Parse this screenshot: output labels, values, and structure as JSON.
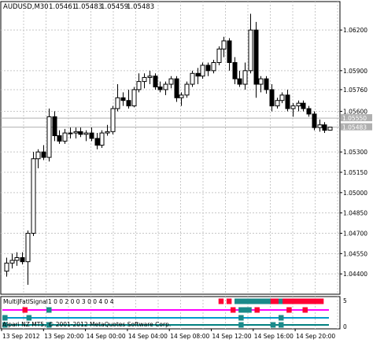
{
  "chart_data": [
    {
      "type": "candlestick",
      "symbol_timeframe": "AUDUSD,M30",
      "ohlc_header": [
        "1.05461",
        "1.05483",
        "1.05459",
        "1.05483"
      ],
      "ylim": [
        1.0425,
        1.0641
      ],
      "y_ticks": [
        "1.06200",
        "1.05900",
        "1.05760",
        "1.05600",
        "1.05300",
        "1.05150",
        "1.05000",
        "1.04850",
        "1.04700",
        "1.04550",
        "1.04400"
      ],
      "y_tick_values": [
        1.062,
        1.059,
        1.0576,
        1.056,
        1.053,
        1.0515,
        1.05,
        1.0485,
        1.047,
        1.0455,
        1.044
      ],
      "price_markers": [
        "1.05550",
        "1.05483"
      ],
      "price_marker_values": [
        1.0555,
        1.05483
      ],
      "grid": true,
      "candles": [
        {
          "o": 1.0442,
          "h": 1.0452,
          "l": 1.0438,
          "c": 1.0448
        },
        {
          "o": 1.0448,
          "h": 1.0455,
          "l": 1.0444,
          "c": 1.045
        },
        {
          "o": 1.045,
          "h": 1.0456,
          "l": 1.0446,
          "c": 1.0452
        },
        {
          "o": 1.0452,
          "h": 1.0456,
          "l": 1.0447,
          "c": 1.0449
        },
        {
          "o": 1.0449,
          "h": 1.0472,
          "l": 1.0432,
          "c": 1.047
        },
        {
          "o": 1.047,
          "h": 1.053,
          "l": 1.0468,
          "c": 1.0525
        },
        {
          "o": 1.0525,
          "h": 1.0532,
          "l": 1.0518,
          "c": 1.053
        },
        {
          "o": 1.053,
          "h": 1.0535,
          "l": 1.0524,
          "c": 1.0526
        },
        {
          "o": 1.0526,
          "h": 1.0562,
          "l": 1.0523,
          "c": 1.0556
        },
        {
          "o": 1.0556,
          "h": 1.056,
          "l": 1.0538,
          "c": 1.0542
        },
        {
          "o": 1.0542,
          "h": 1.0546,
          "l": 1.0536,
          "c": 1.0538
        },
        {
          "o": 1.0538,
          "h": 1.0547,
          "l": 1.0536,
          "c": 1.0544
        },
        {
          "o": 1.0544,
          "h": 1.0548,
          "l": 1.054,
          "c": 1.0544
        },
        {
          "o": 1.0544,
          "h": 1.0548,
          "l": 1.054,
          "c": 1.0545
        },
        {
          "o": 1.0545,
          "h": 1.0548,
          "l": 1.0541,
          "c": 1.0543
        },
        {
          "o": 1.0543,
          "h": 1.0546,
          "l": 1.0538,
          "c": 1.0544
        },
        {
          "o": 1.0544,
          "h": 1.0548,
          "l": 1.0538,
          "c": 1.054
        },
        {
          "o": 1.054,
          "h": 1.0544,
          "l": 1.0532,
          "c": 1.0535
        },
        {
          "o": 1.0535,
          "h": 1.0546,
          "l": 1.0533,
          "c": 1.0544
        },
        {
          "o": 1.0544,
          "h": 1.055,
          "l": 1.0542,
          "c": 1.0545
        },
        {
          "o": 1.0545,
          "h": 1.0564,
          "l": 1.0543,
          "c": 1.0562
        },
        {
          "o": 1.0562,
          "h": 1.058,
          "l": 1.056,
          "c": 1.057
        },
        {
          "o": 1.057,
          "h": 1.0574,
          "l": 1.0564,
          "c": 1.0568
        },
        {
          "o": 1.0568,
          "h": 1.0576,
          "l": 1.0562,
          "c": 1.0564
        },
        {
          "o": 1.0564,
          "h": 1.0578,
          "l": 1.0563,
          "c": 1.0576
        },
        {
          "o": 1.0576,
          "h": 1.0588,
          "l": 1.0574,
          "c": 1.0582
        },
        {
          "o": 1.0582,
          "h": 1.0588,
          "l": 1.0577,
          "c": 1.0585
        },
        {
          "o": 1.0585,
          "h": 1.059,
          "l": 1.058,
          "c": 1.0586
        },
        {
          "o": 1.0586,
          "h": 1.0588,
          "l": 1.0576,
          "c": 1.0578
        },
        {
          "o": 1.0578,
          "h": 1.0582,
          "l": 1.0574,
          "c": 1.0576
        },
        {
          "o": 1.0576,
          "h": 1.0582,
          "l": 1.0572,
          "c": 1.058
        },
        {
          "o": 1.058,
          "h": 1.0586,
          "l": 1.0577,
          "c": 1.0584
        },
        {
          "o": 1.0584,
          "h": 1.0586,
          "l": 1.0567,
          "c": 1.057
        },
        {
          "o": 1.057,
          "h": 1.0574,
          "l": 1.0564,
          "c": 1.0572
        },
        {
          "o": 1.0572,
          "h": 1.0582,
          "l": 1.057,
          "c": 1.058
        },
        {
          "o": 1.058,
          "h": 1.059,
          "l": 1.0578,
          "c": 1.0588
        },
        {
          "o": 1.0588,
          "h": 1.0592,
          "l": 1.058,
          "c": 1.0586
        },
        {
          "o": 1.0586,
          "h": 1.0596,
          "l": 1.0584,
          "c": 1.0594
        },
        {
          "o": 1.0594,
          "h": 1.0596,
          "l": 1.0586,
          "c": 1.059
        },
        {
          "o": 1.059,
          "h": 1.0598,
          "l": 1.0588,
          "c": 1.0596
        },
        {
          "o": 1.0596,
          "h": 1.0608,
          "l": 1.0594,
          "c": 1.0606
        },
        {
          "o": 1.0606,
          "h": 1.0615,
          "l": 1.06,
          "c": 1.0612
        },
        {
          "o": 1.0612,
          "h": 1.0614,
          "l": 1.059,
          "c": 1.0596
        },
        {
          "o": 1.0596,
          "h": 1.06,
          "l": 1.058,
          "c": 1.0584
        },
        {
          "o": 1.0584,
          "h": 1.059,
          "l": 1.0578,
          "c": 1.058
        },
        {
          "o": 1.058,
          "h": 1.0596,
          "l": 1.0576,
          "c": 1.059
        },
        {
          "o": 1.059,
          "h": 1.0632,
          "l": 1.0588,
          "c": 1.062
        },
        {
          "o": 1.062,
          "h": 1.0626,
          "l": 1.057,
          "c": 1.058
        },
        {
          "o": 1.058,
          "h": 1.0586,
          "l": 1.0574,
          "c": 1.0584
        },
        {
          "o": 1.0584,
          "h": 1.0586,
          "l": 1.0573,
          "c": 1.0576
        },
        {
          "o": 1.0576,
          "h": 1.058,
          "l": 1.056,
          "c": 1.0564
        },
        {
          "o": 1.0564,
          "h": 1.057,
          "l": 1.0562,
          "c": 1.0568
        },
        {
          "o": 1.0568,
          "h": 1.0574,
          "l": 1.0566,
          "c": 1.0572
        },
        {
          "o": 1.0572,
          "h": 1.0576,
          "l": 1.056,
          "c": 1.0562
        },
        {
          "o": 1.0562,
          "h": 1.0566,
          "l": 1.0556,
          "c": 1.0564
        },
        {
          "o": 1.0564,
          "h": 1.0568,
          "l": 1.056,
          "c": 1.0566
        },
        {
          "o": 1.0566,
          "h": 1.0568,
          "l": 1.056,
          "c": 1.0562
        },
        {
          "o": 1.0562,
          "h": 1.0564,
          "l": 1.0556,
          "c": 1.0558
        },
        {
          "o": 1.0558,
          "h": 1.056,
          "l": 1.0546,
          "c": 1.0548
        },
        {
          "o": 1.0548,
          "h": 1.0554,
          "l": 1.0545,
          "c": 1.055
        },
        {
          "o": 1.055,
          "h": 1.0552,
          "l": 1.0544,
          "c": 1.0546
        },
        {
          "o": 1.05461,
          "h": 1.05483,
          "l": 1.05459,
          "c": 1.05483
        }
      ]
    },
    {
      "type": "heatmap",
      "indicator_label": "MultiJFatlSignal",
      "indicator_values": "1 0 0 2 0 0 3 0 0 4 0 4",
      "y_ticks": [
        "5",
        "0"
      ],
      "colors": {
        "up": "#1a8a8a",
        "down": "#ff0033",
        "line_cyan": "#0099cc",
        "line_magenta": "#ff00ff",
        "line_teal": "#008080"
      },
      "rows": [
        {
          "signals": [
            [
              "r",
              55
            ],
            [
              "r",
              57
            ],
            [
              "u",
              59
            ],
            [
              "u",
              60
            ],
            [
              "u",
              61
            ],
            [
              "u",
              62
            ],
            [
              "u",
              63
            ],
            [
              "u",
              64
            ],
            [
              "u",
              65
            ],
            [
              "u",
              66
            ],
            [
              "u",
              67
            ],
            [
              "d",
              68
            ],
            [
              "d",
              69
            ],
            [
              "u",
              70
            ],
            [
              "d",
              71
            ],
            [
              "d",
              72
            ],
            [
              "d",
              73
            ],
            [
              "d",
              74
            ],
            [
              "d",
              75
            ],
            [
              "d",
              76
            ],
            [
              "d",
              77
            ],
            [
              "d",
              78
            ],
            [
              "d",
              79
            ],
            [
              "d",
              80
            ]
          ]
        },
        {
          "signals": [
            [
              "d",
              6
            ],
            [
              "u",
              12
            ],
            [
              "d",
              58
            ],
            [
              "u",
              60
            ],
            [
              "u",
              61
            ],
            [
              "u",
              62
            ],
            [
              "d",
              64
            ],
            [
              "d",
              72
            ],
            [
              "d",
              76
            ]
          ]
        },
        {
          "signals": [
            [
              "u",
              1
            ],
            [
              "u",
              7
            ],
            [
              "u",
              60
            ],
            [
              "u",
              70
            ]
          ]
        },
        {
          "signals": [
            [
              "u",
              1
            ],
            [
              "u",
              12
            ],
            [
              "u",
              60
            ],
            [
              "u",
              68
            ],
            [
              "u",
              70
            ]
          ]
        }
      ]
    }
  ],
  "xaxis": {
    "labels": [
      "13 Sep 2012",
      "13 Sep 20:00",
      "14 Sep 00:00",
      "14 Sep 04:00",
      "14 Sep 08:00",
      "14 Sep 12:00",
      "14 Sep 16:00",
      "14 Sep 20:00"
    ]
  },
  "watermark": "Alpari NZ MT5, © 2001-2012 MetaQuotes Software Corp."
}
